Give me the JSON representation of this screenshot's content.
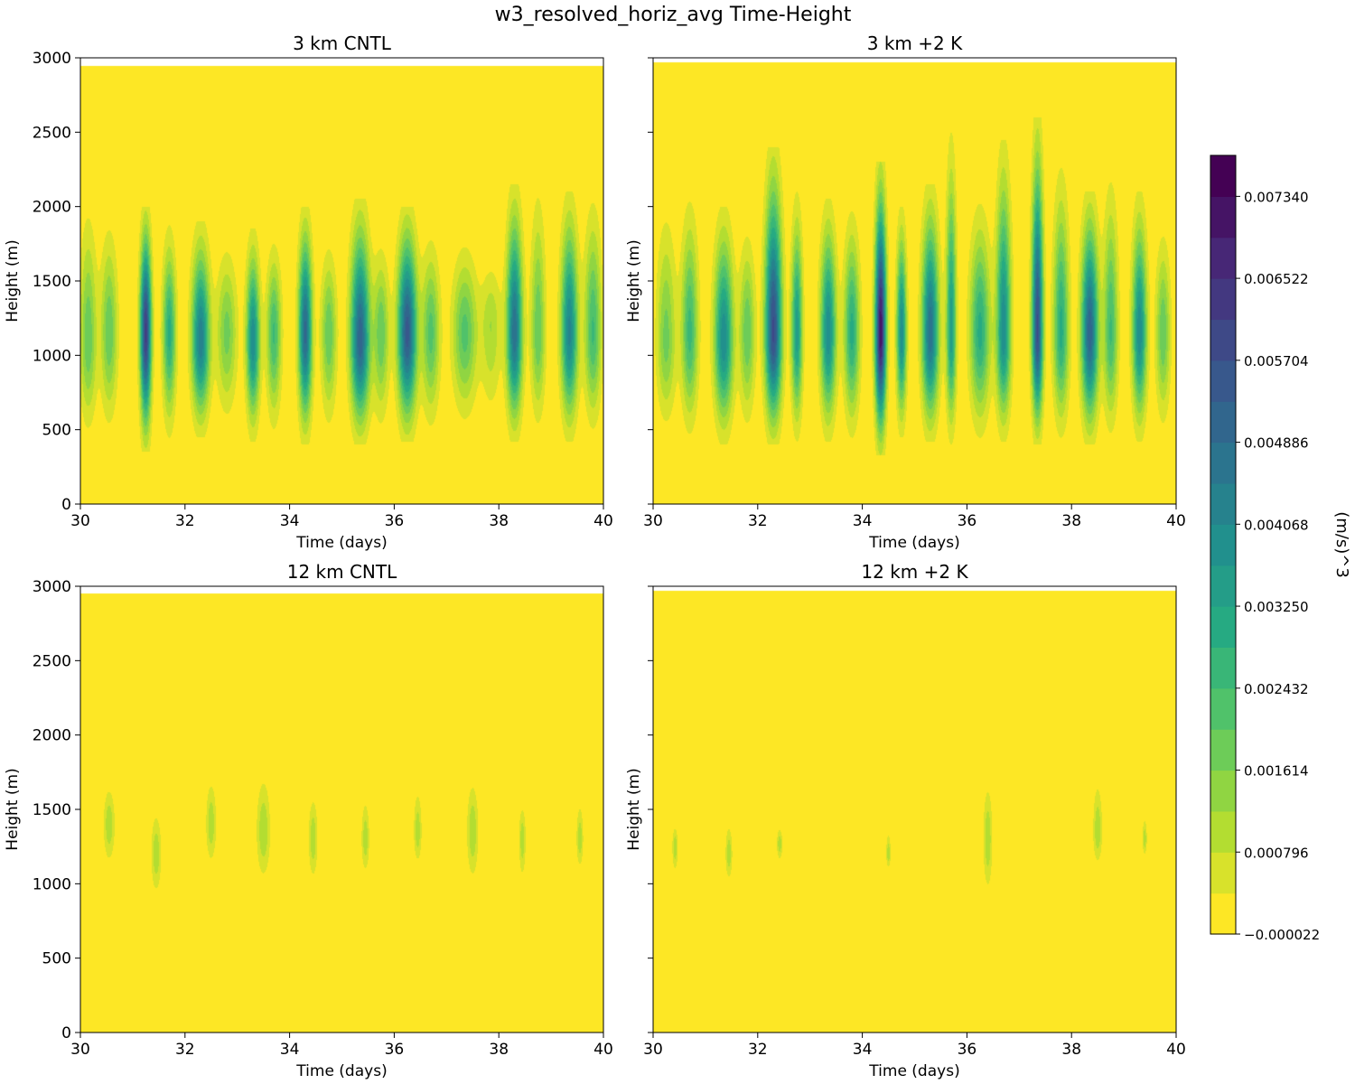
{
  "figure": {
    "suptitle": "w3_resolved_horiz_avg Time-Height"
  },
  "colorbar": {
    "label": "(m/s)^3",
    "min": -2.2e-05,
    "max": 0.007749,
    "tick_values": [
      -2.2e-05,
      0.000796,
      0.001614,
      0.002432,
      0.00325,
      0.004068,
      0.004886,
      0.005704,
      0.006522,
      0.00734
    ],
    "tick_labels": [
      "−0.000022",
      "0.000796",
      "0.001614",
      "0.002432",
      "0.003250",
      "0.004068",
      "0.004886",
      "0.005704",
      "0.006522",
      "0.007340"
    ],
    "levels": 19,
    "colormap": "viridis_r"
  },
  "chart_data": [
    {
      "type": "heatmap",
      "title": "3 km CNTL",
      "xlabel": "Time (days)",
      "ylabel": "Height (m)",
      "xlim": [
        30,
        40
      ],
      "ylim": [
        0,
        3000
      ],
      "xticks": [
        "30",
        "32",
        "34",
        "36",
        "38",
        "40"
      ],
      "yticks": [
        "0",
        "500",
        "1000",
        "1500",
        "2000",
        "2500",
        "3000"
      ],
      "data_top_m": 2950,
      "events": [
        {
          "t": 30.15,
          "amp": 0.002,
          "halfwidth_days": 0.15,
          "core_m": 1100,
          "bottom_m": 420,
          "top_m": 2050
        },
        {
          "t": 30.55,
          "amp": 0.002,
          "halfwidth_days": 0.15,
          "core_m": 1150,
          "bottom_m": 450,
          "top_m": 1950
        },
        {
          "t": 31.25,
          "amp": 0.0062,
          "halfwidth_days": 0.1,
          "core_m": 1150,
          "bottom_m": 350,
          "top_m": 2000
        },
        {
          "t": 31.7,
          "amp": 0.003,
          "halfwidth_days": 0.12,
          "core_m": 1150,
          "bottom_m": 420,
          "top_m": 1900
        },
        {
          "t": 32.3,
          "amp": 0.0044,
          "halfwidth_days": 0.16,
          "core_m": 1100,
          "bottom_m": 450,
          "top_m": 1900
        },
        {
          "t": 32.8,
          "amp": 0.0018,
          "halfwidth_days": 0.18,
          "core_m": 1150,
          "bottom_m": 500,
          "top_m": 1800
        },
        {
          "t": 33.3,
          "amp": 0.004,
          "halfwidth_days": 0.12,
          "core_m": 1100,
          "bottom_m": 420,
          "top_m": 1850
        },
        {
          "t": 33.7,
          "amp": 0.0025,
          "halfwidth_days": 0.13,
          "core_m": 1150,
          "bottom_m": 450,
          "top_m": 1800
        },
        {
          "t": 34.3,
          "amp": 0.005,
          "halfwidth_days": 0.12,
          "core_m": 1150,
          "bottom_m": 400,
          "top_m": 2000
        },
        {
          "t": 34.75,
          "amp": 0.002,
          "halfwidth_days": 0.14,
          "core_m": 1150,
          "bottom_m": 450,
          "top_m": 1800
        },
        {
          "t": 35.35,
          "amp": 0.0052,
          "halfwidth_days": 0.17,
          "core_m": 1100,
          "bottom_m": 400,
          "top_m": 2050
        },
        {
          "t": 35.75,
          "amp": 0.002,
          "halfwidth_days": 0.14,
          "core_m": 1150,
          "bottom_m": 450,
          "top_m": 1800
        },
        {
          "t": 36.25,
          "amp": 0.0055,
          "halfwidth_days": 0.17,
          "core_m": 1150,
          "bottom_m": 420,
          "top_m": 2000
        },
        {
          "t": 36.7,
          "amp": 0.0022,
          "halfwidth_days": 0.16,
          "core_m": 1150,
          "bottom_m": 450,
          "top_m": 1850
        },
        {
          "t": 37.35,
          "amp": 0.0022,
          "halfwidth_days": 0.22,
          "core_m": 1150,
          "bottom_m": 500,
          "top_m": 1800
        },
        {
          "t": 37.85,
          "amp": 0.0012,
          "halfwidth_days": 0.18,
          "core_m": 1200,
          "bottom_m": 500,
          "top_m": 1700
        },
        {
          "t": 38.3,
          "amp": 0.0048,
          "halfwidth_days": 0.14,
          "core_m": 1150,
          "bottom_m": 420,
          "top_m": 2150
        },
        {
          "t": 38.75,
          "amp": 0.002,
          "halfwidth_days": 0.13,
          "core_m": 1150,
          "bottom_m": 450,
          "top_m": 2200
        },
        {
          "t": 39.35,
          "amp": 0.0042,
          "halfwidth_days": 0.15,
          "core_m": 1150,
          "bottom_m": 420,
          "top_m": 2100
        },
        {
          "t": 39.8,
          "amp": 0.0025,
          "halfwidth_days": 0.15,
          "core_m": 1150,
          "bottom_m": 450,
          "top_m": 2100
        }
      ]
    },
    {
      "type": "heatmap",
      "title": "3 km +2 K",
      "xlabel": "Time (days)",
      "ylabel": "Height (m)",
      "xlim": [
        30,
        40
      ],
      "ylim": [
        0,
        3000
      ],
      "xticks": [
        "30",
        "32",
        "34",
        "36",
        "38",
        "40"
      ],
      "yticks": [
        "",
        "",
        "",
        "",
        "",
        "",
        ""
      ],
      "data_top_m": 2975,
      "events": [
        {
          "t": 30.25,
          "amp": 0.0018,
          "halfwidth_days": 0.17,
          "core_m": 1100,
          "bottom_m": 450,
          "top_m": 2050
        },
        {
          "t": 30.7,
          "amp": 0.0026,
          "halfwidth_days": 0.15,
          "core_m": 1150,
          "bottom_m": 420,
          "top_m": 2100
        },
        {
          "t": 31.35,
          "amp": 0.004,
          "halfwidth_days": 0.17,
          "core_m": 1100,
          "bottom_m": 400,
          "top_m": 2000
        },
        {
          "t": 31.8,
          "amp": 0.002,
          "halfwidth_days": 0.14,
          "core_m": 1150,
          "bottom_m": 450,
          "top_m": 1900
        },
        {
          "t": 32.3,
          "amp": 0.0058,
          "halfwidth_days": 0.15,
          "core_m": 1150,
          "bottom_m": 400,
          "top_m": 2400
        },
        {
          "t": 32.75,
          "amp": 0.0035,
          "halfwidth_days": 0.1,
          "core_m": 1150,
          "bottom_m": 420,
          "top_m": 2100
        },
        {
          "t": 33.35,
          "amp": 0.004,
          "halfwidth_days": 0.14,
          "core_m": 1150,
          "bottom_m": 420,
          "top_m": 2050
        },
        {
          "t": 33.8,
          "amp": 0.003,
          "halfwidth_days": 0.14,
          "core_m": 1150,
          "bottom_m": 420,
          "top_m": 2000
        },
        {
          "t": 34.35,
          "amp": 0.0072,
          "halfwidth_days": 0.1,
          "core_m": 1150,
          "bottom_m": 330,
          "top_m": 2300
        },
        {
          "t": 34.75,
          "amp": 0.004,
          "halfwidth_days": 0.09,
          "core_m": 1150,
          "bottom_m": 450,
          "top_m": 2000
        },
        {
          "t": 35.3,
          "amp": 0.0048,
          "halfwidth_days": 0.15,
          "core_m": 1150,
          "bottom_m": 420,
          "top_m": 2150
        },
        {
          "t": 35.7,
          "amp": 0.0035,
          "halfwidth_days": 0.09,
          "core_m": 1150,
          "bottom_m": 400,
          "top_m": 2500
        },
        {
          "t": 36.25,
          "amp": 0.003,
          "halfwidth_days": 0.18,
          "core_m": 1150,
          "bottom_m": 420,
          "top_m": 2050
        },
        {
          "t": 36.7,
          "amp": 0.004,
          "halfwidth_days": 0.13,
          "core_m": 1150,
          "bottom_m": 420,
          "top_m": 2450
        },
        {
          "t": 37.35,
          "amp": 0.0058,
          "halfwidth_days": 0.1,
          "core_m": 1150,
          "bottom_m": 400,
          "top_m": 2600
        },
        {
          "t": 37.8,
          "amp": 0.003,
          "halfwidth_days": 0.14,
          "core_m": 1150,
          "bottom_m": 420,
          "top_m": 2300
        },
        {
          "t": 38.35,
          "amp": 0.0052,
          "halfwidth_days": 0.15,
          "core_m": 1150,
          "bottom_m": 400,
          "top_m": 2100
        },
        {
          "t": 38.75,
          "amp": 0.0025,
          "halfwidth_days": 0.13,
          "core_m": 1150,
          "bottom_m": 420,
          "top_m": 2250
        },
        {
          "t": 39.3,
          "amp": 0.004,
          "halfwidth_days": 0.13,
          "core_m": 1150,
          "bottom_m": 420,
          "top_m": 2100
        },
        {
          "t": 39.75,
          "amp": 0.002,
          "halfwidth_days": 0.13,
          "core_m": 1150,
          "bottom_m": 450,
          "top_m": 1900
        }
      ]
    },
    {
      "type": "heatmap",
      "title": "12 km CNTL",
      "xlabel": "Time (days)",
      "ylabel": "Height (m)",
      "xlim": [
        30,
        40
      ],
      "ylim": [
        0,
        3000
      ],
      "xticks": [
        "30",
        "32",
        "34",
        "36",
        "38",
        "40"
      ],
      "yticks": [
        "0",
        "500",
        "1000",
        "1500",
        "2000",
        "2500",
        "3000"
      ],
      "data_top_m": 2955,
      "events": [
        {
          "t": 30.55,
          "amp": 0.00115,
          "halfwidth_days": 0.1,
          "core_m": 1400,
          "bottom_m": 1080,
          "top_m": 1710
        },
        {
          "t": 31.45,
          "amp": 0.00115,
          "halfwidth_days": 0.09,
          "core_m": 1200,
          "bottom_m": 870,
          "top_m": 1540
        },
        {
          "t": 32.5,
          "amp": 0.00115,
          "halfwidth_days": 0.09,
          "core_m": 1400,
          "bottom_m": 1080,
          "top_m": 1760
        },
        {
          "t": 33.5,
          "amp": 0.0012,
          "halfwidth_days": 0.12,
          "core_m": 1350,
          "bottom_m": 960,
          "top_m": 1800
        },
        {
          "t": 34.45,
          "amp": 0.00115,
          "halfwidth_days": 0.08,
          "core_m": 1300,
          "bottom_m": 970,
          "top_m": 1650
        },
        {
          "t": 35.45,
          "amp": 0.00112,
          "halfwidth_days": 0.07,
          "core_m": 1300,
          "bottom_m": 1020,
          "top_m": 1620
        },
        {
          "t": 36.45,
          "amp": 0.00112,
          "halfwidth_days": 0.07,
          "core_m": 1350,
          "bottom_m": 1090,
          "top_m": 1690
        },
        {
          "t": 37.5,
          "amp": 0.0012,
          "halfwidth_days": 0.1,
          "core_m": 1350,
          "bottom_m": 960,
          "top_m": 1760
        },
        {
          "t": 38.45,
          "amp": 0.00112,
          "halfwidth_days": 0.06,
          "core_m": 1300,
          "bottom_m": 980,
          "top_m": 1580
        },
        {
          "t": 39.55,
          "amp": 0.00112,
          "halfwidth_days": 0.06,
          "core_m": 1300,
          "bottom_m": 1060,
          "top_m": 1590
        }
      ]
    },
    {
      "type": "heatmap",
      "title": "12 km +2 K",
      "xlabel": "Time (days)",
      "ylabel": "Height (m)",
      "xlim": [
        30,
        40
      ],
      "ylim": [
        0,
        3000
      ],
      "xticks": [
        "30",
        "32",
        "34",
        "36",
        "38",
        "40"
      ],
      "yticks": [
        "",
        "",
        "",
        "",
        "",
        "",
        ""
      ],
      "data_top_m": 2975,
      "events": [
        {
          "t": 30.42,
          "amp": 0.00112,
          "halfwidth_days": 0.05,
          "core_m": 1250,
          "bottom_m": 1040,
          "top_m": 1420
        },
        {
          "t": 31.45,
          "amp": 0.00112,
          "halfwidth_days": 0.06,
          "core_m": 1200,
          "bottom_m": 980,
          "top_m": 1440
        },
        {
          "t": 32.42,
          "amp": 0.00112,
          "halfwidth_days": 0.05,
          "core_m": 1270,
          "bottom_m": 1130,
          "top_m": 1400
        },
        {
          "t": 34.5,
          "amp": 0.0011,
          "halfwidth_days": 0.04,
          "core_m": 1200,
          "bottom_m": 1080,
          "top_m": 1380
        },
        {
          "t": 36.4,
          "amp": 0.0012,
          "halfwidth_days": 0.08,
          "core_m": 1300,
          "bottom_m": 880,
          "top_m": 1740
        },
        {
          "t": 38.5,
          "amp": 0.00118,
          "halfwidth_days": 0.08,
          "core_m": 1350,
          "bottom_m": 1080,
          "top_m": 1750
        },
        {
          "t": 39.4,
          "amp": 0.0011,
          "halfwidth_days": 0.04,
          "core_m": 1300,
          "bottom_m": 1160,
          "top_m": 1480
        }
      ]
    }
  ]
}
